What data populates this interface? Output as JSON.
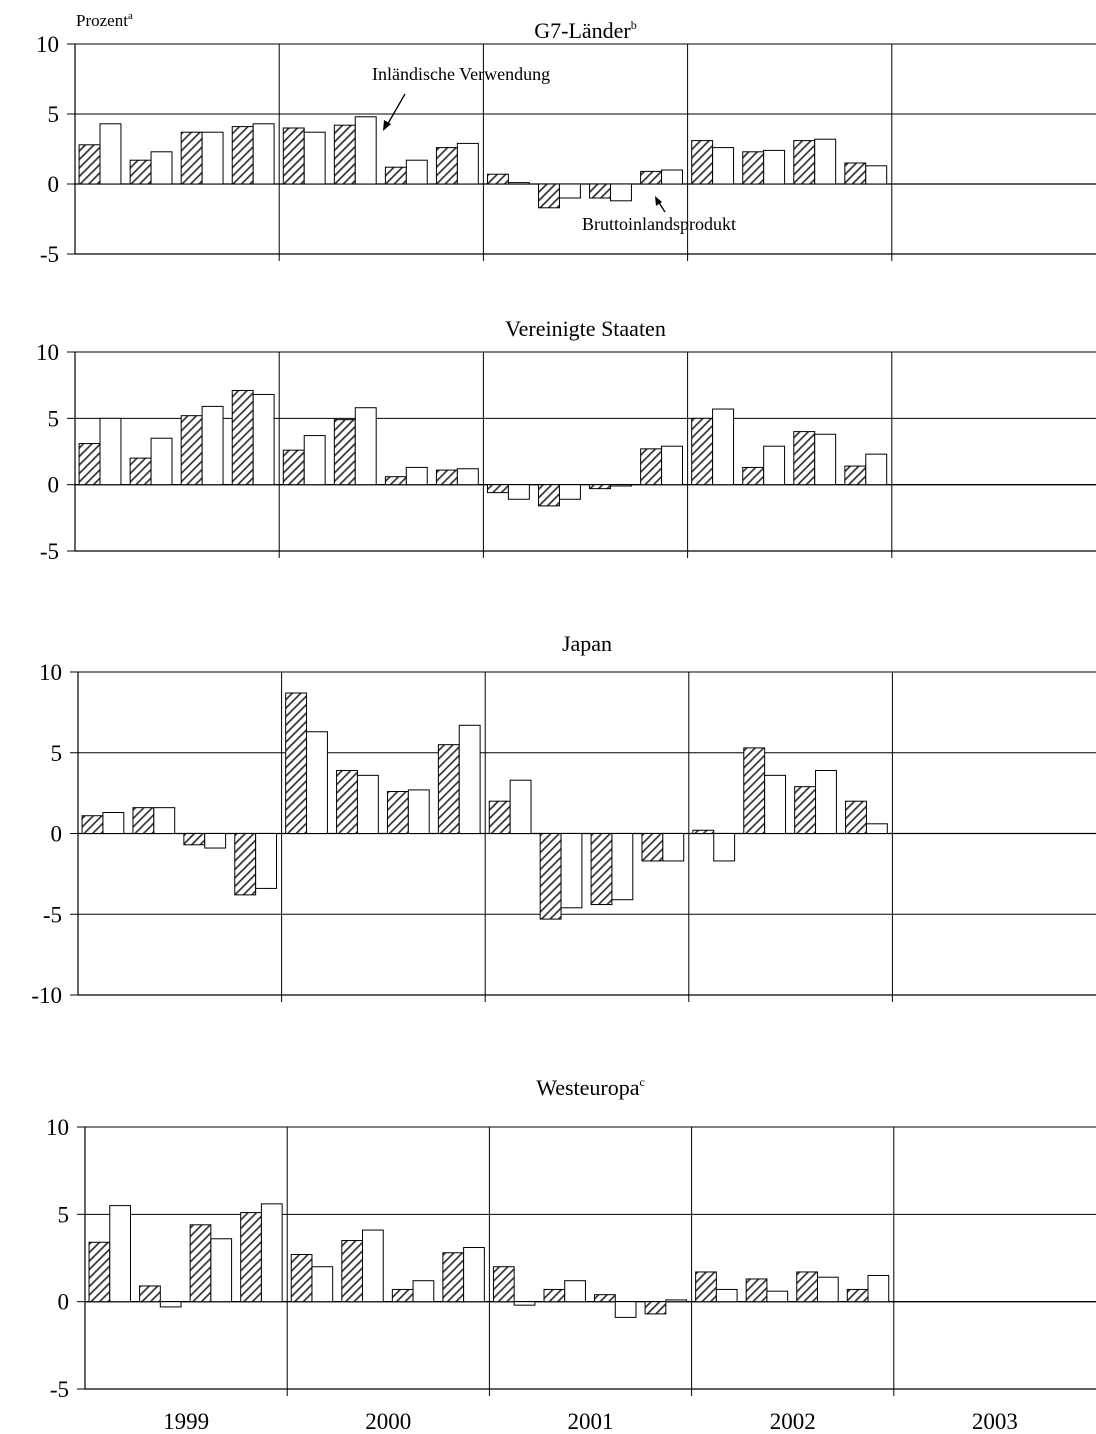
{
  "unit_label": "Prozent",
  "unit_footnote": "a",
  "annotations": {
    "inland": "Inländische Verwendung",
    "gdp": "Bruttoinlandsprodukt"
  },
  "years": [
    "1999",
    "2000",
    "2001",
    "2002",
    "2003"
  ],
  "colors": {
    "gdp_bar": "#9a9a9a",
    "domestic_bar": "#ffffff",
    "stroke": "#000000"
  },
  "chart_data": [
    {
      "type": "bar",
      "title": "G7-Länder",
      "title_footnote": "b",
      "ylim": [
        -5,
        10
      ],
      "yticks": [
        -5,
        0,
        5,
        10
      ],
      "grid": true,
      "categories": [
        "1999 Q1",
        "1999 Q2",
        "1999 Q3",
        "1999 Q4",
        "2000 Q1",
        "2000 Q2",
        "2000 Q3",
        "2000 Q4",
        "2001 Q1",
        "2001 Q2",
        "2001 Q3",
        "2001 Q4",
        "2002 Q1",
        "2002 Q2",
        "2002 Q3",
        "2002 Q4"
      ],
      "series": [
        {
          "name": "Bruttoinlandsprodukt",
          "values": [
            2.8,
            1.7,
            3.7,
            4.1,
            4.0,
            4.2,
            1.2,
            2.6,
            0.7,
            -1.7,
            -1.0,
            0.9,
            3.1,
            2.3,
            3.1,
            1.5
          ]
        },
        {
          "name": "Inländische Verwendung",
          "values": [
            4.3,
            2.3,
            3.7,
            4.3,
            3.7,
            4.8,
            1.7,
            2.9,
            0.1,
            -1.0,
            -1.2,
            1.0,
            2.6,
            2.4,
            3.2,
            1.3
          ]
        }
      ]
    },
    {
      "type": "bar",
      "title": "Vereinigte Staaten",
      "title_footnote": "",
      "ylim": [
        -5,
        10
      ],
      "yticks": [
        -5,
        0,
        5,
        10
      ],
      "grid": true,
      "categories": [
        "1999 Q1",
        "1999 Q2",
        "1999 Q3",
        "1999 Q4",
        "2000 Q1",
        "2000 Q2",
        "2000 Q3",
        "2000 Q4",
        "2001 Q1",
        "2001 Q2",
        "2001 Q3",
        "2001 Q4",
        "2002 Q1",
        "2002 Q2",
        "2002 Q3",
        "2002 Q4"
      ],
      "series": [
        {
          "name": "Bruttoinlandsprodukt",
          "values": [
            3.1,
            2.0,
            5.2,
            7.1,
            2.6,
            4.9,
            0.6,
            1.1,
            -0.6,
            -1.6,
            -0.3,
            2.7,
            5.0,
            1.3,
            4.0,
            1.4
          ]
        },
        {
          "name": "Inländische Verwendung",
          "values": [
            5.0,
            3.5,
            5.9,
            6.8,
            3.7,
            5.8,
            1.3,
            1.2,
            -1.1,
            -1.1,
            -0.1,
            2.9,
            5.7,
            2.9,
            3.8,
            2.3
          ]
        }
      ]
    },
    {
      "type": "bar",
      "title": "Japan",
      "title_footnote": "",
      "ylim": [
        -10,
        10
      ],
      "yticks": [
        -10,
        -5,
        0,
        5,
        10
      ],
      "grid": true,
      "categories": [
        "1999 Q1",
        "1999 Q2",
        "1999 Q3",
        "1999 Q4",
        "2000 Q1",
        "2000 Q2",
        "2000 Q3",
        "2000 Q4",
        "2001 Q1",
        "2001 Q2",
        "2001 Q3",
        "2001 Q4",
        "2002 Q1",
        "2002 Q2",
        "2002 Q3",
        "2002 Q4"
      ],
      "series": [
        {
          "name": "Bruttoinlandsprodukt",
          "values": [
            1.1,
            1.6,
            -0.7,
            -3.8,
            8.7,
            3.9,
            2.6,
            5.5,
            2.0,
            -5.3,
            -4.4,
            -1.7,
            0.2,
            5.3,
            2.9,
            2.0
          ]
        },
        {
          "name": "Inländische Verwendung",
          "values": [
            1.3,
            1.6,
            -0.9,
            -3.4,
            6.3,
            3.6,
            2.7,
            6.7,
            3.3,
            -4.6,
            -4.1,
            -1.7,
            -1.7,
            3.6,
            3.9,
            0.6
          ]
        }
      ]
    },
    {
      "type": "bar",
      "title": "Westeuropa",
      "title_footnote": "c",
      "ylim": [
        -5,
        10
      ],
      "yticks": [
        -5,
        0,
        5,
        10
      ],
      "grid": true,
      "categories": [
        "1999 Q1",
        "1999 Q2",
        "1999 Q3",
        "1999 Q4",
        "2000 Q1",
        "2000 Q2",
        "2000 Q3",
        "2000 Q4",
        "2001 Q1",
        "2001 Q2",
        "2001 Q3",
        "2001 Q4",
        "2002 Q1",
        "2002 Q2",
        "2002 Q3",
        "2002 Q4"
      ],
      "series": [
        {
          "name": "Bruttoinlandsprodukt",
          "values": [
            3.4,
            0.9,
            4.4,
            5.1,
            2.7,
            3.5,
            0.7,
            2.8,
            2.0,
            0.7,
            0.4,
            -0.7,
            1.7,
            1.3,
            1.7,
            0.7
          ]
        },
        {
          "name": "Inländische Verwendung",
          "values": [
            5.5,
            -0.3,
            3.6,
            5.6,
            2.0,
            4.1,
            1.2,
            3.1,
            -0.2,
            1.2,
            -0.9,
            0.1,
            0.7,
            0.6,
            1.4,
            1.5
          ]
        }
      ]
    }
  ]
}
